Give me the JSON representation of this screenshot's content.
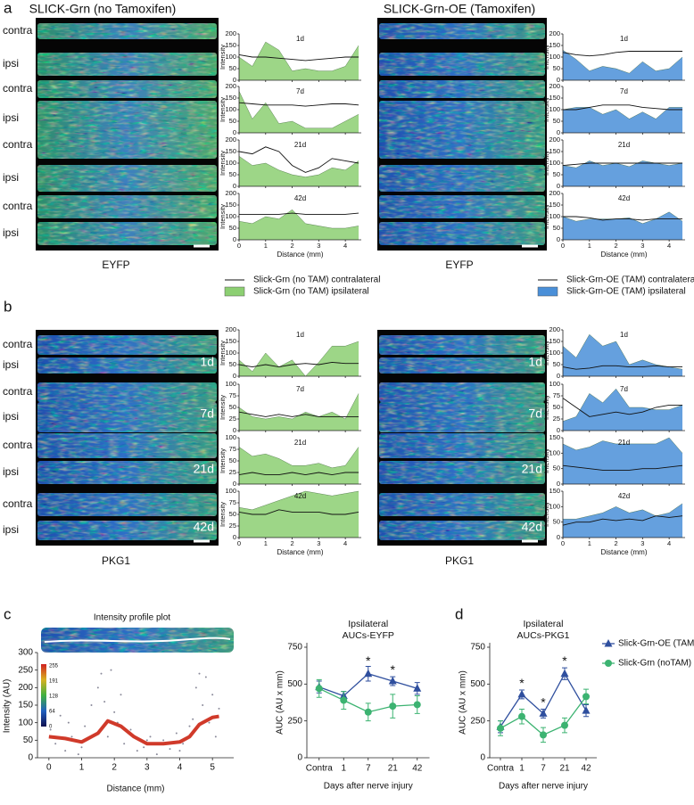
{
  "panel_a": {
    "letter": "a",
    "x": [
      0,
      0.5,
      1,
      1.5,
      2,
      2.5,
      3,
      3.5,
      4,
      4.5
    ],
    "xlim": [
      0,
      4.6
    ],
    "xticks": [
      0,
      1,
      2,
      3,
      4
    ],
    "xlabel": "Distance (mm)",
    "ylabel": "Intensity",
    "groups": [
      {
        "title": "SLICK-Grn (no Tamoxifen)",
        "rows": [
          "contra",
          "ipsi",
          "contra",
          "ipsi",
          "contra",
          "ipsi",
          "contra",
          "ipsi"
        ],
        "stain": "EYFP",
        "series": [
          {
            "name": "Slick-Grn (no TAM) contralateral",
            "color": "#111111"
          },
          {
            "name": "Slick-Grn (no TAM) ipsilateral",
            "color": "#8ccf72"
          }
        ],
        "charts": [
          {
            "label": "1d",
            "ylim": [
              0,
              200
            ],
            "yticks": [
              0,
              50,
              100,
              150,
              200
            ],
            "values": [
              [
                110,
                100,
                100,
                95,
                90,
                85,
                90,
                95,
                100,
                100
              ],
              [
                100,
                60,
                165,
                130,
                40,
                50,
                40,
                40,
                60,
                150
              ]
            ]
          },
          {
            "label": "7d",
            "ylim": [
              0,
              200
            ],
            "yticks": [
              0,
              50,
              100,
              150,
              200
            ],
            "values": [
              [
                130,
                125,
                120,
                120,
                120,
                115,
                120,
                125,
                125,
                120
              ],
              [
                180,
                60,
                130,
                40,
                50,
                20,
                20,
                20,
                50,
                80
              ]
            ]
          },
          {
            "label": "21d",
            "ylim": [
              0,
              200
            ],
            "yticks": [
              0,
              50,
              100,
              150,
              200
            ],
            "values": [
              [
                150,
                140,
                170,
                150,
                90,
                60,
                80,
                120,
                110,
                100
              ],
              [
                130,
                90,
                100,
                70,
                50,
                40,
                50,
                80,
                70,
                110
              ]
            ]
          },
          {
            "label": "42d",
            "ylim": [
              0,
              200
            ],
            "yticks": [
              0,
              50,
              100,
              150,
              200
            ],
            "values": [
              [
                110,
                110,
                110,
                110,
                115,
                110,
                110,
                110,
                110,
                115
              ],
              [
                80,
                70,
                100,
                90,
                130,
                70,
                60,
                50,
                50,
                60
              ]
            ]
          }
        ]
      },
      {
        "title": "SLICK-Grn-OE (Tamoxifen)",
        "rows": [],
        "stain": "EYFP",
        "series": [
          {
            "name": "Slick-Grn-OE (TAM) contralateral",
            "color": "#111111"
          },
          {
            "name": "Slick-Grn-OE (TAM) ipsilateral",
            "color": "#4a8fd8"
          }
        ],
        "charts": [
          {
            "label": "1d",
            "ylim": [
              0,
              200
            ],
            "yticks": [
              0,
              50,
              100,
              150,
              200
            ],
            "values": [
              [
                120,
                110,
                105,
                110,
                120,
                125,
                125,
                125,
                125,
                125
              ],
              [
                130,
                90,
                40,
                60,
                50,
                30,
                80,
                40,
                50,
                100
              ]
            ]
          },
          {
            "label": "7d",
            "ylim": [
              0,
              200
            ],
            "yticks": [
              0,
              50,
              100,
              150,
              200
            ],
            "values": [
              [
                100,
                100,
                110,
                120,
                120,
                120,
                110,
                105,
                100,
                100
              ],
              [
                100,
                110,
                110,
                80,
                100,
                60,
                90,
                60,
                110,
                110
              ]
            ]
          },
          {
            "label": "21d",
            "ylim": [
              0,
              200
            ],
            "yticks": [
              0,
              50,
              100,
              150,
              200
            ],
            "values": [
              [
                90,
                95,
                100,
                100,
                100,
                100,
                100,
                100,
                100,
                100
              ],
              [
                90,
                80,
                110,
                90,
                100,
                85,
                110,
                100,
                90,
                100
              ]
            ]
          },
          {
            "label": "42d",
            "ylim": [
              0,
              200
            ],
            "yticks": [
              0,
              50,
              100,
              150,
              200
            ],
            "values": [
              [
                100,
                100,
                95,
                85,
                90,
                90,
                85,
                90,
                90,
                90
              ],
              [
                100,
                80,
                90,
                90,
                90,
                95,
                70,
                90,
                120,
                80
              ]
            ]
          }
        ]
      }
    ]
  },
  "panel_b": {
    "letter": "b",
    "x": [
      0,
      0.5,
      1,
      1.5,
      2,
      2.5,
      3,
      3.5,
      4,
      4.5
    ],
    "xlim": [
      0,
      4.6
    ],
    "xticks": [
      0,
      1,
      2,
      3,
      4
    ],
    "xlabel": "Distance (mm)",
    "ylabel": "Intensity",
    "groups": [
      {
        "rows": [
          "contra",
          "ipsi",
          "contra",
          "ipsi",
          "contra",
          "ipsi",
          "contra",
          "ipsi"
        ],
        "stain": "PKG1",
        "charts": [
          {
            "label": "1d",
            "ylim": [
              0,
              200
            ],
            "yticks": [
              0,
              50,
              100,
              150,
              200
            ],
            "values": [
              [
                50,
                40,
                50,
                40,
                50,
                55,
                50,
                60,
                55,
                55
              ],
              [
                70,
                20,
                100,
                40,
                70,
                0,
                60,
                130,
                130,
                150
              ]
            ]
          },
          {
            "label": "7d",
            "ylim": [
              0,
              100
            ],
            "yticks": [
              0,
              25,
              50,
              75,
              100
            ],
            "values": [
              [
                40,
                35,
                30,
                35,
                30,
                35,
                30,
                30,
                30,
                30
              ],
              [
                50,
                30,
                25,
                30,
                25,
                40,
                30,
                40,
                25,
                80
              ]
            ]
          },
          {
            "label": "21d",
            "ylim": [
              0,
              100
            ],
            "yticks": [
              0,
              25,
              50,
              75,
              100
            ],
            "values": [
              [
                20,
                25,
                20,
                20,
                25,
                20,
                25,
                20,
                25,
                25
              ],
              [
                80,
                60,
                65,
                55,
                40,
                40,
                45,
                35,
                40,
                80
              ]
            ]
          },
          {
            "label": "42d",
            "ylim": [
              0,
              100
            ],
            "yticks": [
              0,
              25,
              50,
              75,
              100
            ],
            "values": [
              [
                55,
                50,
                50,
                60,
                55,
                55,
                55,
                50,
                50,
                55
              ],
              [
                65,
                60,
                70,
                80,
                90,
                100,
                95,
                90,
                95,
                100
              ]
            ]
          }
        ]
      },
      {
        "rows": [],
        "stain": "PKG1",
        "charts": [
          {
            "label": "1d",
            "ylim": [
              0,
              200
            ],
            "yticks": [
              0,
              50,
              100,
              150,
              200
            ],
            "values": [
              [
                40,
                30,
                35,
                45,
                45,
                40,
                40,
                45,
                40,
                40
              ],
              [
                130,
                80,
                180,
                130,
                150,
                50,
                70,
                50,
                40,
                30
              ]
            ]
          },
          {
            "label": "7d",
            "ylim": [
              0,
              100
            ],
            "yticks": [
              0,
              25,
              50,
              75,
              100
            ],
            "values": [
              [
                70,
                50,
                30,
                35,
                40,
                35,
                40,
                50,
                55,
                55
              ],
              [
                20,
                30,
                80,
                60,
                90,
                50,
                50,
                45,
                45,
                55
              ]
            ]
          },
          {
            "label": "21d",
            "ylim": [
              0,
              150
            ],
            "yticks": [
              0,
              50,
              100,
              150
            ],
            "values": [
              [
                60,
                55,
                50,
                45,
                45,
                45,
                50,
                50,
                55,
                60
              ],
              [
                130,
                110,
                120,
                140,
                130,
                130,
                130,
                130,
                150,
                100
              ]
            ]
          },
          {
            "label": "42d",
            "ylim": [
              0,
              150
            ],
            "yticks": [
              0,
              50,
              100,
              150
            ],
            "values": [
              [
                40,
                50,
                50,
                60,
                55,
                60,
                55,
                70,
                65,
                70
              ],
              [
                60,
                60,
                70,
                80,
                100,
                80,
                90,
                70,
                80,
                110
              ]
            ]
          }
        ]
      }
    ]
  },
  "panel_c": {
    "letter": "c",
    "title": "Intensity profile plot",
    "colorbar": [
      255,
      191,
      128,
      64,
      0
    ],
    "plot": {
      "type": "scatter",
      "xlim": [
        -0.35,
        5.65
      ],
      "xticks": [
        0,
        1,
        2,
        3,
        4,
        5
      ],
      "ylim": [
        0,
        300
      ],
      "yticks": [
        0,
        50,
        100,
        150,
        200,
        250,
        300
      ],
      "xlabel": "Distance (mm)",
      "ylabel": "Intensity (AU)",
      "points": {
        "color": "#8a8a9a",
        "x": [
          0.05,
          0.2,
          0.35,
          0.5,
          0.7,
          0.9,
          1.1,
          1.3,
          1.5,
          1.6,
          1.7,
          1.8,
          1.9,
          2.0,
          2.1,
          2.3,
          2.5,
          2.7,
          2.9,
          3.1,
          3.3,
          3.5,
          3.7,
          3.9,
          4.1,
          4.3,
          4.5,
          4.6,
          4.7,
          4.8,
          4.9,
          5.0,
          5.1,
          5.2,
          0.6,
          1.0,
          2.2,
          3.0,
          4.0,
          4.4
        ],
        "y": [
          80,
          40,
          120,
          20,
          60,
          10,
          90,
          150,
          200,
          240,
          160,
          60,
          250,
          130,
          100,
          40,
          80,
          20,
          30,
          60,
          10,
          50,
          25,
          70,
          40,
          90,
          200,
          240,
          150,
          230,
          100,
          180,
          60,
          140,
          100,
          30,
          180,
          50,
          20,
          110
        ]
      },
      "profile": {
        "color": "#d03a2a",
        "x": [
          0,
          0.5,
          1,
          1.5,
          1.8,
          2.2,
          2.6,
          3,
          3.5,
          4,
          4.3,
          4.6,
          5,
          5.2
        ],
        "y": [
          60,
          55,
          45,
          70,
          105,
          90,
          60,
          40,
          40,
          45,
          60,
          95,
          115,
          118
        ]
      }
    },
    "auc": {
      "type": "line",
      "title": "Ipsilateral",
      "subtitle": "AUCs-EYFP",
      "categories": [
        "Contra",
        "1",
        "7",
        "21",
        "42"
      ],
      "xlabel": "Days after nerve injury",
      "ylabel": "AUC (AU x mm)",
      "ylim": [
        0,
        750
      ],
      "yticks": [
        0,
        250,
        500,
        750
      ],
      "legend": false,
      "series": [
        {
          "name": "Slick-Grn-OE (TAM)",
          "color": "#2f4f9e",
          "marker": "triangle",
          "values": [
            480,
            420,
            570,
            520,
            470
          ],
          "errors": [
            40,
            30,
            50,
            30,
            40
          ]
        },
        {
          "name": "Slick-Grn (noTAM)",
          "color": "#3cb371",
          "marker": "circle",
          "values": [
            470,
            390,
            310,
            350,
            360
          ],
          "errors": [
            60,
            60,
            60,
            80,
            60
          ]
        }
      ],
      "annotations": [
        {
          "x": "7",
          "y": 650,
          "text": "*"
        },
        {
          "x": "21",
          "y": 590,
          "text": "*"
        }
      ]
    }
  },
  "panel_d": {
    "letter": "d",
    "auc": {
      "type": "line",
      "title": "Ipsilateral",
      "subtitle": "AUCs-PKG1",
      "categories": [
        "Contra",
        "1",
        "7",
        "21",
        "42"
      ],
      "xlabel": "Days after nerve injury",
      "ylabel": "AUC (AU x mm)",
      "ylim": [
        0,
        750
      ],
      "yticks": [
        0,
        250,
        500,
        750
      ],
      "legend": true,
      "series": [
        {
          "name": "Slick-Grn-OE (TAM)",
          "color": "#2f4f9e",
          "marker": "triangle",
          "values": [
            210,
            430,
            300,
            570,
            320
          ],
          "errors": [
            40,
            30,
            30,
            40,
            40
          ]
        },
        {
          "name": "Slick-Grn (noTAM)",
          "color": "#3cb371",
          "marker": "circle",
          "values": [
            200,
            280,
            155,
            220,
            415
          ],
          "errors": [
            50,
            50,
            50,
            50,
            50
          ]
        }
      ],
      "annotations": [
        {
          "x": "1",
          "y": 500,
          "text": "*"
        },
        {
          "x": "7",
          "y": 370,
          "text": "*"
        },
        {
          "x": "21",
          "y": 650,
          "text": "*"
        }
      ]
    }
  }
}
